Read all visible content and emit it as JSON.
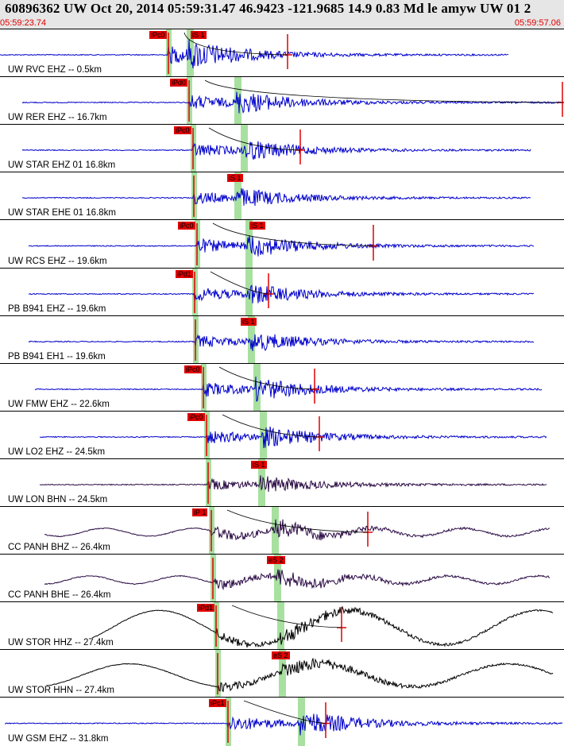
{
  "header": {
    "title": "60896362 UW Oct 20, 2014 05:59:31.47   46.9423 -121.9685 14.9 0.83 Md le amyw UW 01   2",
    "time_start": "05:59:23.74",
    "time_end": "05:59:57.06"
  },
  "colors": {
    "trace_blue": "#0000cc",
    "trace_dark": "#2a0a44",
    "trace_black": "#000000",
    "pick_red": "#e00000",
    "window_green": "#a8e0a0",
    "header_bg": "#e6e6e6"
  },
  "traces": [
    {
      "station": "UW RVC EHZ -- 0.5km",
      "style": "blue",
      "picks": [
        "iPc0",
        "iS 1"
      ],
      "p": 212,
      "s": 238,
      "coda": 362,
      "end": 640,
      "amp": 38,
      "start": 0
    },
    {
      "station": "UW RER EHZ -- 16.7km",
      "style": "blue",
      "picks": [
        "iPd0"
      ],
      "p": 238,
      "s": 298,
      "coda": 708,
      "end": 708,
      "amp": 30,
      "start": 28
    },
    {
      "station": "UW STAR EHZ 01 16.8km",
      "style": "blue",
      "picks": [
        "iPc0"
      ],
      "p": 243,
      "s": 306,
      "coda": 378,
      "end": 668,
      "amp": 28,
      "start": 28
    },
    {
      "station": "UW STAR EHE 01 16.8km",
      "style": "blue",
      "picks": [
        "iS 1"
      ],
      "p": 244,
      "s": 298,
      "coda": null,
      "end": 668,
      "amp": 26,
      "start": 28
    },
    {
      "station": "UW RCS EHZ -- 19.6km",
      "style": "blue",
      "picks": [
        "iPc0",
        "iS 1"
      ],
      "p": 248,
      "s": 312,
      "coda": 470,
      "end": 672,
      "amp": 30,
      "start": 36
    },
    {
      "station": "PB B941 EHZ -- 19.6km",
      "style": "blue",
      "picks": [
        "iPd1"
      ],
      "p": 245,
      "s": 312,
      "coda": 338,
      "end": 672,
      "amp": 28,
      "start": 36
    },
    {
      "station": "PB B941 EH1 -- 19.6km",
      "style": "blue",
      "picks": [
        "iS 1"
      ],
      "p": 246,
      "s": 315,
      "coda": null,
      "end": 672,
      "amp": 26,
      "start": 36
    },
    {
      "station": "UW FMW EHZ -- 22.6km",
      "style": "blue",
      "picks": [
        "iPc0"
      ],
      "p": 256,
      "s": 322,
      "coda": 396,
      "end": 682,
      "amp": 30,
      "start": 44
    },
    {
      "station": "UW LO2 EHZ -- 24.5km",
      "style": "blue",
      "picks": [
        "iPc0"
      ],
      "p": 260,
      "s": 330,
      "coda": 402,
      "end": 688,
      "amp": 28,
      "start": 50
    },
    {
      "station": "UW LON BHN -- 24.5km",
      "style": "dark",
      "picks": [
        "iS 1"
      ],
      "p": 262,
      "s": 328,
      "coda": null,
      "end": 688,
      "amp": 22,
      "start": 50
    },
    {
      "station": "CC PANH BHZ -- 26.4km",
      "style": "dark",
      "picks": [
        "iP 1"
      ],
      "p": 266,
      "s": 345,
      "coda": 463,
      "end": 692,
      "amp": 24,
      "start": 56
    },
    {
      "station": "CC PANH BHE -- 26.4km",
      "style": "dark",
      "picks": [
        "eS 2"
      ],
      "p": 268,
      "s": 348,
      "coda": null,
      "end": 692,
      "amp": 24,
      "start": 56
    },
    {
      "station": "UW STOR HHZ -- 27.4km",
      "style": "black",
      "picks": [
        "iPd1"
      ],
      "p": 272,
      "s": 352,
      "coda": 430,
      "end": 696,
      "amp": 30,
      "start": 58
    },
    {
      "station": "UW STOR HHN -- 27.4km",
      "style": "black",
      "picks": [
        "eS 2"
      ],
      "p": 274,
      "s": 354,
      "coda": null,
      "end": 696,
      "amp": 30,
      "start": 58
    },
    {
      "station": "UW GSM EHZ -- 31.8km",
      "style": "blue",
      "picks": [
        "iPc1"
      ],
      "p": 287,
      "s": 378,
      "coda": 410,
      "end": 708,
      "amp": 34,
      "start": 6
    }
  ]
}
